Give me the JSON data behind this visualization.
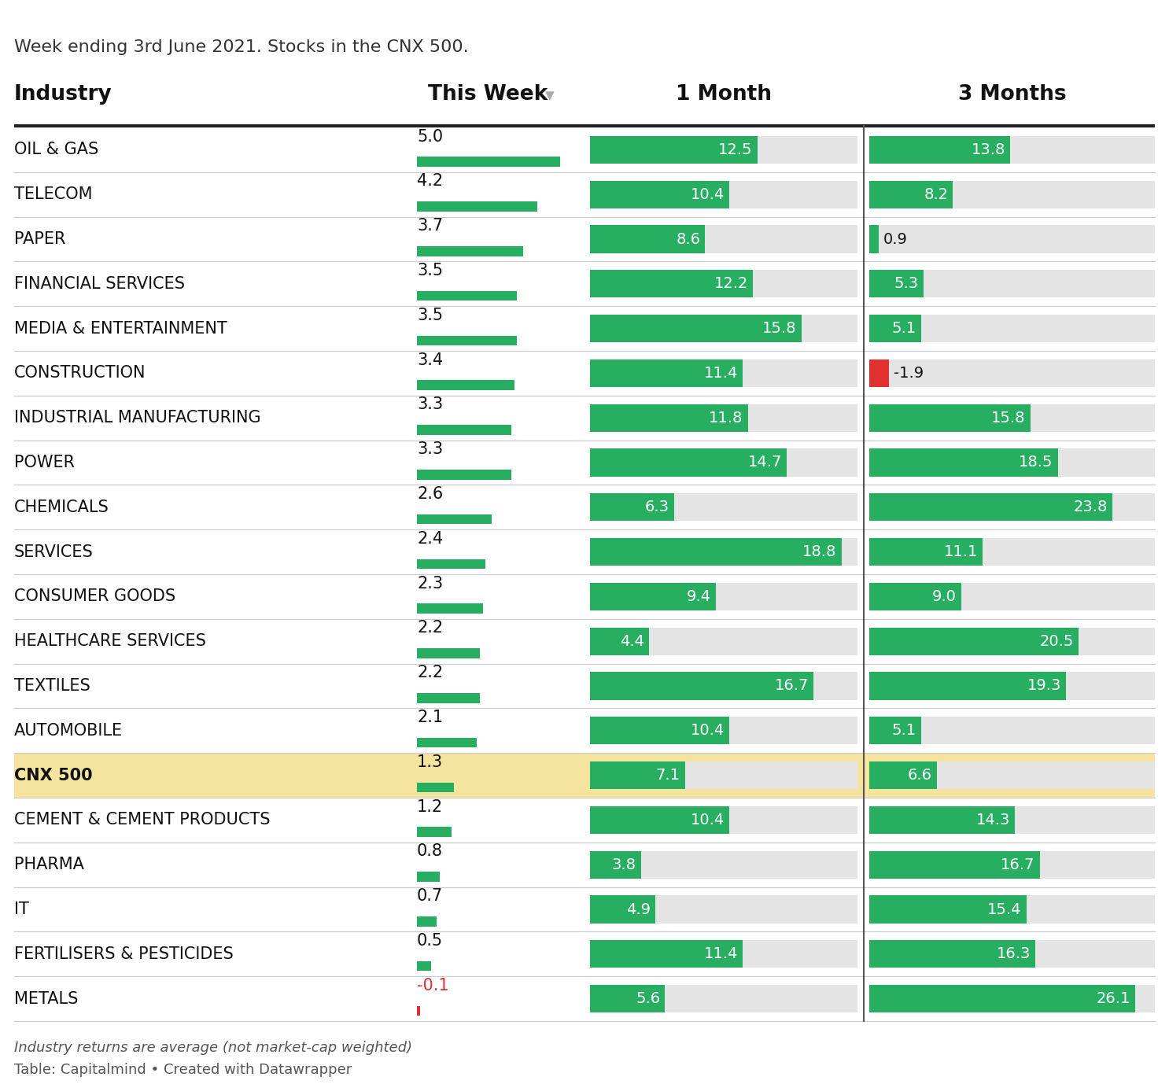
{
  "subtitle": "Week ending 3rd June 2021. Stocks in the CNX 500.",
  "industries": [
    "OIL & GAS",
    "TELECOM",
    "PAPER",
    "FINANCIAL SERVICES",
    "MEDIA & ENTERTAINMENT",
    "CONSTRUCTION",
    "INDUSTRIAL MANUFACTURING",
    "POWER",
    "CHEMICALS",
    "SERVICES",
    "CONSUMER GOODS",
    "HEALTHCARE SERVICES",
    "TEXTILES",
    "AUTOMOBILE",
    "CNX 500",
    "CEMENT & CEMENT PRODUCTS",
    "PHARMA",
    "IT",
    "FERTILISERS & PESTICIDES",
    "METALS"
  ],
  "this_week": [
    5.0,
    4.2,
    3.7,
    3.5,
    3.5,
    3.4,
    3.3,
    3.3,
    2.6,
    2.4,
    2.3,
    2.2,
    2.2,
    2.1,
    1.3,
    1.2,
    0.8,
    0.7,
    0.5,
    -0.1
  ],
  "one_month": [
    12.5,
    10.4,
    8.6,
    12.2,
    15.8,
    11.4,
    11.8,
    14.7,
    6.3,
    18.8,
    9.4,
    4.4,
    16.7,
    10.4,
    7.1,
    10.4,
    3.8,
    4.9,
    11.4,
    5.6
  ],
  "three_months": [
    13.8,
    8.2,
    0.9,
    5.3,
    5.1,
    -1.9,
    15.8,
    18.5,
    23.8,
    11.1,
    9.0,
    20.5,
    19.3,
    5.1,
    6.6,
    14.3,
    16.7,
    15.4,
    16.3,
    26.1
  ],
  "highlight_row": 14,
  "highlight_color": "#f5e4a0",
  "bar_green": "#27ae60",
  "bar_red": "#e03030",
  "bg_gray": "#e4e4e4",
  "bg_color": "#ffffff",
  "header_line_color": "#222222",
  "row_line_color": "#cccccc",
  "max_week_bar": 5.5,
  "max_1m": 20.0,
  "max_3m": 28.0,
  "fig_width": 14.86,
  "fig_height": 13.78,
  "dpi": 100
}
